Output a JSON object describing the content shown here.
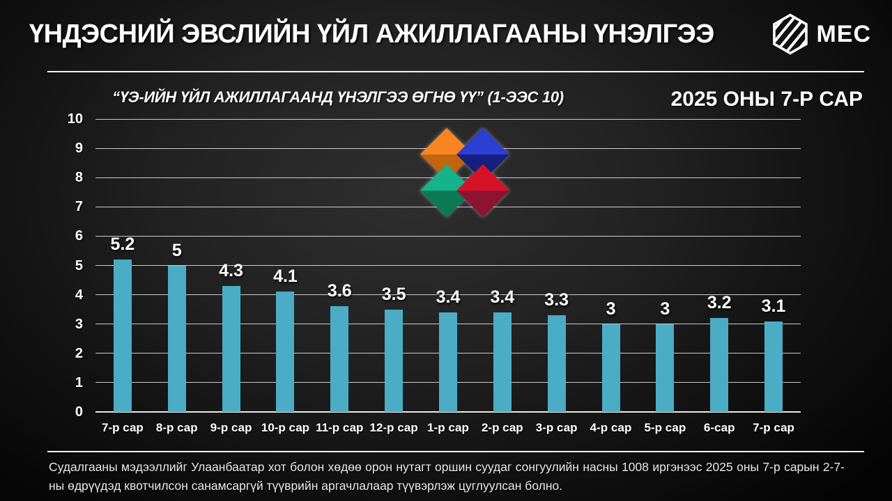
{
  "header": {
    "title": "ҮНДЭСНИЙ ЭВСЛИЙН ҮЙЛ АЖИЛЛАГААНЫ ҮНЭЛГЭЭ",
    "logo_text": "MEC"
  },
  "chart": {
    "question": "“ҮЭ-ИЙН ҮЙЛ АЖИЛЛАГААНД ҮНЭЛГЭЭ ӨГНӨ ҮҮ” (1-ЭЭС 10)",
    "period": "2025 ОНЫ 7-Р САР"
  },
  "chart_data": {
    "type": "bar",
    "title": "“ҮЭ-ИЙН ҮЙЛ АЖИЛЛАГААНД ҮНЭЛГЭЭ ӨГНӨ ҮҮ” (1-ЭЭС 10)",
    "subtitle": "2025 ОНЫ 7-Р САР",
    "categories": [
      "7-р сар",
      "8-р сар",
      "9-р сар",
      "10-р сар",
      "11-р сар",
      "12-р сар",
      "1-р сар",
      "2-р сар",
      "3-р сар",
      "4-р сар",
      "5-р сар",
      "6-сар",
      "7-р сар"
    ],
    "values": [
      5.2,
      5,
      4.3,
      4.1,
      3.6,
      3.5,
      3.4,
      3.4,
      3.3,
      3,
      3,
      3.2,
      3.1
    ],
    "xlabel": "",
    "ylabel": "",
    "ylim": [
      0,
      10
    ],
    "yticks": [
      0,
      1,
      2,
      3,
      4,
      5,
      6,
      7,
      8,
      9,
      10
    ],
    "grid": true,
    "legend_position": "none",
    "value_labels": true,
    "bar_color": "#4BACC6"
  },
  "footer": {
    "note": "Судалгааны мэдээллийг Улаанбаатар хот болон хөдөө орон нутагт оршин суудаг сонгуулийн насны 1008 иргэнээс 2025 оны 7-р сарын 2-7-ны өдрүүдэд квотчилсон санамсаргүй түүврийн аргачлалаар түүвэрлэж цуглуулсан болно."
  },
  "colors": {
    "bar": "#4BACC6",
    "background": "#1c1c1c",
    "text": "#ffffff",
    "emblem_orange_light": "#F8851F",
    "emblem_orange_dark": "#C4640C",
    "emblem_blue_light": "#2B3FD2",
    "emblem_blue_dark": "#171F7E",
    "emblem_green_light": "#14B389",
    "emblem_green_dark": "#0A7A55",
    "emblem_red_light": "#D51226",
    "emblem_red_dark": "#8C1432"
  }
}
